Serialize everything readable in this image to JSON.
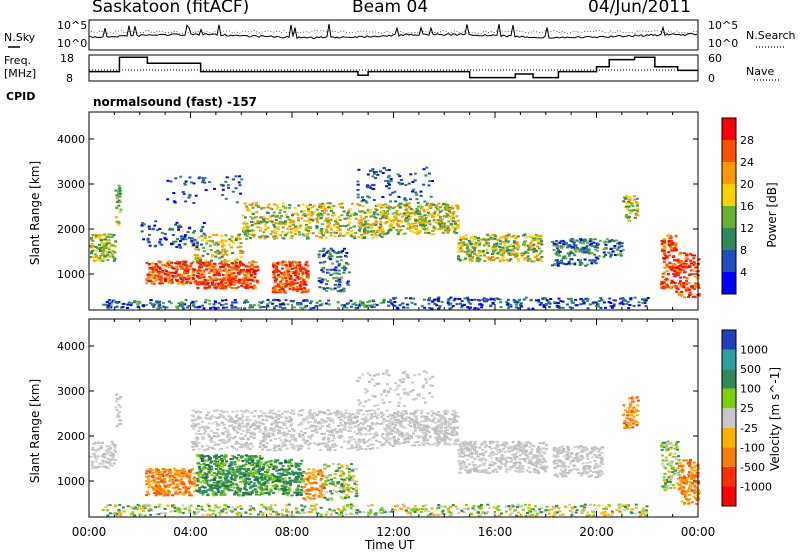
{
  "header": {
    "station": "Saskatoon (fitACF)",
    "beam": "Beam 04",
    "date": "04/Jun/2011"
  },
  "strip_panels": {
    "noise": {
      "left_label": "N.Sky",
      "right_label": "N.Search",
      "left_ticks": [
        "10^5",
        "10^0"
      ],
      "right_ticks": [
        "10^5",
        "10^0"
      ]
    },
    "freq": {
      "left_label_1": "Freq.",
      "left_label_2": "[MHz]",
      "right_label": "Nave",
      "left_ticks": [
        "18",
        "8"
      ],
      "right_ticks": [
        "60",
        "0"
      ]
    },
    "cpid_label": "CPID",
    "cpid_text": "normalsound (fast) -157"
  },
  "chart_data": [
    {
      "type": "heatmap",
      "name": "power-panel",
      "ylabel": "Slant Range [km]",
      "xlabel": "",
      "yticks": [
        "1000",
        "2000",
        "3000",
        "4000"
      ],
      "ylim": [
        200,
        4600
      ],
      "xlim_hours": [
        0,
        24
      ],
      "colorbar": {
        "label": "Power [dB]",
        "ticks": [
          "4",
          "8",
          "12",
          "16",
          "20",
          "24",
          "28"
        ],
        "colors": [
          "#0000ff",
          "#1f4fbf",
          "#2e8b57",
          "#66b032",
          "#ffd000",
          "#ff9900",
          "#ff5000",
          "#ff0000"
        ]
      }
    },
    {
      "type": "heatmap",
      "name": "velocity-panel",
      "ylabel": "Slant Range [km]",
      "xlabel": "Time UT",
      "yticks": [
        "1000",
        "2000",
        "3000",
        "4000"
      ],
      "ylim": [
        200,
        4600
      ],
      "xlim_hours": [
        0,
        24
      ],
      "xticks": [
        "00:00",
        "04:00",
        "08:00",
        "12:00",
        "16:00",
        "20:00",
        "00:00"
      ],
      "colorbar": {
        "label": "Velocity [m s^-1]",
        "ticks": [
          "1000",
          "500",
          "100",
          "25",
          "-25",
          "-100",
          "-500",
          "-1000"
        ],
        "colors": [
          "#1f3fbf",
          "#2aa0a0",
          "#2e8b57",
          "#7fd000",
          "#c8c8c8",
          "#ffb000",
          "#ff7a00",
          "#ff3000",
          "#ff0000"
        ]
      }
    }
  ],
  "colors": {
    "frame": "#000000",
    "background": "#ffffff"
  }
}
